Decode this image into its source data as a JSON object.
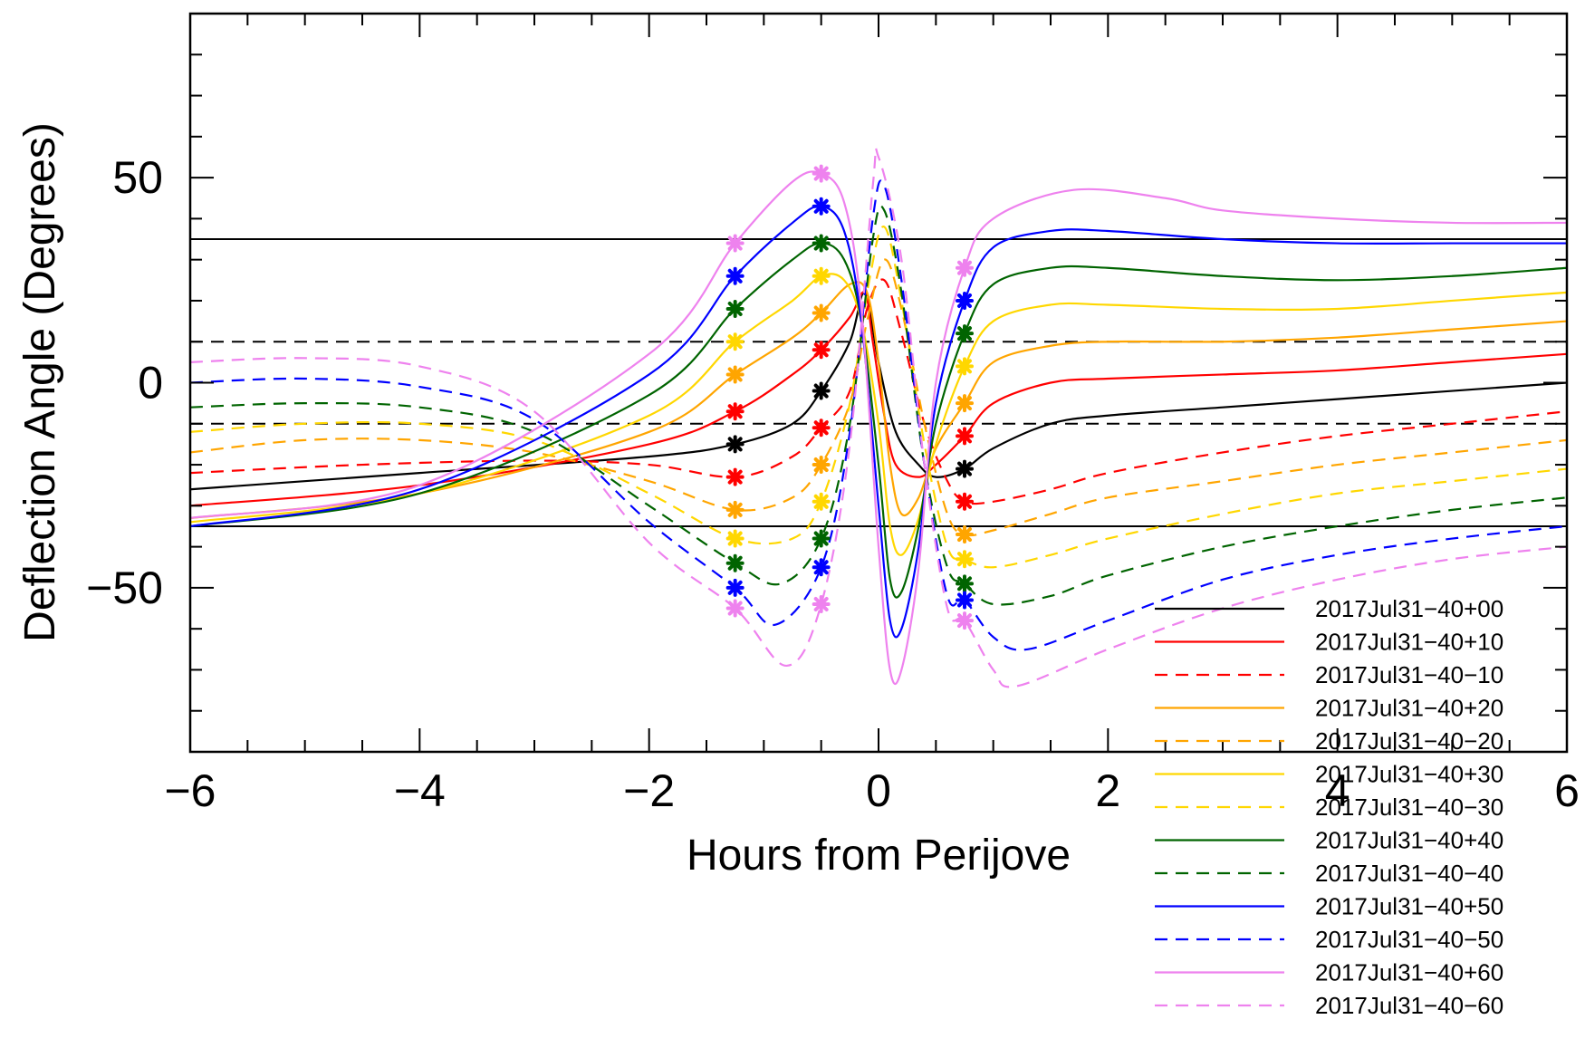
{
  "chart_data": {
    "type": "line",
    "title": "",
    "xlabel": "Hours from Perijove",
    "ylabel": "Deflection Angle (Degrees)",
    "xlim": [
      -6,
      6
    ],
    "ylim": [
      -90,
      90
    ],
    "xticks": [
      -6,
      -4,
      -2,
      0,
      2,
      4,
      6
    ],
    "xtick_labels": [
      "−6",
      "−4",
      "−2",
      "0",
      "2",
      "4",
      "6"
    ],
    "yticks": [
      -50,
      0,
      50
    ],
    "ytick_labels": [
      "−50",
      "0",
      "50"
    ],
    "grid": false,
    "legend_position": "bottom-right",
    "reference_lines": [
      {
        "y": 35,
        "style": "solid"
      },
      {
        "y": -35,
        "style": "solid"
      },
      {
        "y": 10,
        "style": "dashed"
      },
      {
        "y": -10,
        "style": "dashed"
      }
    ],
    "marker_times": [
      -1.25,
      -0.5,
      0.75
    ],
    "series": [
      {
        "name": "2017Jul31−40+00",
        "color": "#000000",
        "dash": false,
        "x": [
          -6,
          -4,
          -2,
          -1.25,
          -0.75,
          -0.5,
          -0.25,
          -0.12,
          0,
          0.15,
          0.35,
          0.5,
          0.75,
          1.0,
          1.5,
          2,
          3,
          4,
          5,
          6
        ],
        "y": [
          -26,
          -22,
          -18,
          -15,
          -10,
          -2,
          10,
          22,
          5,
          -12,
          -20,
          -23,
          -21,
          -16,
          -10,
          -8,
          -6,
          -4,
          -2,
          0
        ]
      },
      {
        "name": "2017Jul31−40+10",
        "color": "#ff0000",
        "dash": false,
        "x": [
          -6,
          -4,
          -2,
          -1.25,
          -0.75,
          -0.5,
          -0.25,
          -0.12,
          -0.05,
          0.05,
          0.15,
          0.35,
          0.5,
          0.75,
          1.0,
          1.5,
          2,
          3,
          4,
          5,
          6
        ],
        "y": [
          -30,
          -25,
          -15,
          -7,
          2,
          8,
          16,
          22,
          10,
          -8,
          -20,
          -23,
          -20,
          -13,
          -5,
          0,
          1,
          2,
          3,
          5,
          7
        ]
      },
      {
        "name": "2017Jul31−40−10",
        "color": "#ff0000",
        "dash": true,
        "x": [
          -6,
          -4.5,
          -3,
          -2,
          -1.25,
          -0.75,
          -0.5,
          -0.25,
          -0.1,
          0.05,
          0.2,
          0.4,
          0.6,
          0.75,
          1.0,
          1.5,
          2,
          3,
          4,
          5,
          6
        ],
        "y": [
          -22,
          -20,
          -19,
          -20,
          -23,
          -18,
          -11,
          -2,
          18,
          25,
          12,
          -10,
          -24,
          -29,
          -29,
          -26,
          -22,
          -17,
          -13,
          -10,
          -7
        ]
      },
      {
        "name": "2017Jul31−40+20",
        "color": "#ffa500",
        "dash": false,
        "x": [
          -6,
          -4,
          -2,
          -1.25,
          -0.75,
          -0.5,
          -0.25,
          -0.1,
          0,
          0.1,
          0.2,
          0.35,
          0.5,
          0.75,
          1.0,
          1.5,
          2,
          3,
          4,
          5,
          6
        ],
        "y": [
          -33,
          -27,
          -12,
          2,
          11,
          17,
          24,
          22,
          5,
          -20,
          -32,
          -28,
          -16,
          -5,
          5,
          9,
          10,
          10,
          11,
          13,
          15
        ]
      },
      {
        "name": "2017Jul31−40−20",
        "color": "#ffa500",
        "dash": true,
        "x": [
          -6,
          -5,
          -4,
          -3,
          -2,
          -1.25,
          -0.75,
          -0.5,
          -0.25,
          -0.1,
          0.05,
          0.2,
          0.4,
          0.6,
          0.75,
          1.0,
          1.5,
          2,
          3,
          4,
          5,
          6
        ],
        "y": [
          -17,
          -14,
          -14,
          -17,
          -24,
          -31,
          -28,
          -20,
          -5,
          15,
          30,
          18,
          -10,
          -32,
          -37,
          -36,
          -32,
          -28,
          -24,
          -20,
          -17,
          -14
        ]
      },
      {
        "name": "2017Jul31−40+30",
        "color": "#ffd700",
        "dash": false,
        "x": [
          -6,
          -4,
          -2,
          -1.25,
          -0.75,
          -0.5,
          -0.3,
          -0.15,
          0,
          0.1,
          0.2,
          0.35,
          0.5,
          0.75,
          1.0,
          1.5,
          2,
          3,
          4,
          5,
          6
        ],
        "y": [
          -34,
          -27,
          -8,
          10,
          20,
          26,
          25,
          15,
          -10,
          -35,
          -42,
          -33,
          -15,
          4,
          15,
          19,
          19,
          18,
          18,
          20,
          22
        ]
      },
      {
        "name": "2017Jul31−40−30",
        "color": "#ffd700",
        "dash": true,
        "x": [
          -6,
          -5,
          -4,
          -3,
          -2,
          -1.25,
          -0.75,
          -0.5,
          -0.25,
          -0.08,
          0.05,
          0.2,
          0.4,
          0.6,
          0.75,
          1.0,
          1.5,
          2,
          3,
          4,
          5,
          6
        ],
        "y": [
          -12,
          -10,
          -10,
          -14,
          -27,
          -38,
          -38,
          -29,
          -5,
          25,
          38,
          20,
          -15,
          -40,
          -43,
          -45,
          -42,
          -38,
          -32,
          -27,
          -24,
          -21
        ]
      },
      {
        "name": "2017Jul31−40+40",
        "color": "#006400",
        "dash": false,
        "x": [
          -6,
          -4,
          -2,
          -1.25,
          -0.75,
          -0.5,
          -0.3,
          -0.15,
          0,
          0.1,
          0.2,
          0.35,
          0.5,
          0.75,
          1.0,
          1.5,
          2,
          3,
          4,
          5,
          6
        ],
        "y": [
          -35,
          -27,
          -3,
          18,
          30,
          34,
          30,
          15,
          -20,
          -48,
          -51,
          -35,
          -10,
          12,
          24,
          28,
          28,
          26,
          25,
          26,
          28
        ]
      },
      {
        "name": "2017Jul31−40−40",
        "color": "#006400",
        "dash": true,
        "x": [
          -6,
          -5,
          -4,
          -3,
          -2,
          -1.25,
          -0.85,
          -0.5,
          -0.25,
          -0.05,
          0.05,
          0.2,
          0.4,
          0.6,
          0.75,
          1.0,
          1.5,
          2,
          3,
          4,
          5,
          6
        ],
        "y": [
          -6,
          -5,
          -6,
          -12,
          -30,
          -44,
          -49,
          -38,
          -10,
          35,
          42,
          22,
          -20,
          -45,
          -49,
          -54,
          -52,
          -47,
          -40,
          -35,
          -31,
          -28
        ]
      },
      {
        "name": "2017Jul31−40+50",
        "color": "#0000ff",
        "dash": false,
        "x": [
          -6,
          -4,
          -2,
          -1.25,
          -0.75,
          -0.5,
          -0.3,
          -0.15,
          0,
          0.1,
          0.2,
          0.35,
          0.5,
          0.75,
          1.0,
          1.5,
          2,
          3,
          4,
          5,
          6
        ],
        "y": [
          -35,
          -26,
          2,
          26,
          39,
          43,
          37,
          15,
          -30,
          -58,
          -60,
          -40,
          -5,
          20,
          33,
          37,
          37,
          35,
          34,
          34,
          34
        ]
      },
      {
        "name": "2017Jul31−40−50",
        "color": "#0000ff",
        "dash": true,
        "x": [
          -6,
          -5,
          -4,
          -3,
          -2,
          -1.25,
          -0.9,
          -0.5,
          -0.25,
          -0.05,
          0.05,
          0.2,
          0.4,
          0.6,
          0.75,
          1.0,
          1.3,
          2,
          3,
          4,
          5,
          6
        ],
        "y": [
          0,
          1,
          -1,
          -9,
          -34,
          -50,
          -59,
          -45,
          -12,
          40,
          48,
          25,
          -20,
          -52,
          -53,
          -62,
          -65,
          -58,
          -48,
          -42,
          -38,
          -35
        ]
      },
      {
        "name": "2017Jul31−40+60",
        "color": "#ee82ee",
        "dash": false,
        "x": [
          -6,
          -4,
          -2,
          -1.25,
          -0.75,
          -0.5,
          -0.3,
          -0.15,
          0,
          0.1,
          0.2,
          0.35,
          0.5,
          0.75,
          1.0,
          1.7,
          2.5,
          3,
          4,
          5,
          6
        ],
        "y": [
          -33,
          -25,
          7,
          34,
          49,
          51,
          44,
          18,
          -40,
          -70,
          -70,
          -45,
          0,
          28,
          40,
          47,
          45,
          42,
          40,
          39,
          39
        ]
      },
      {
        "name": "2017Jul31−40−60",
        "color": "#ee82ee",
        "dash": true,
        "x": [
          -6,
          -5,
          -4,
          -3,
          -2,
          -1.25,
          -0.8,
          -0.5,
          -0.25,
          -0.05,
          0,
          0.2,
          0.4,
          0.6,
          0.75,
          1.0,
          1.2,
          2,
          3,
          4,
          5,
          6
        ],
        "y": [
          5,
          6,
          4,
          -7,
          -39,
          -55,
          -69,
          -54,
          -15,
          48,
          55,
          30,
          -20,
          -55,
          -58,
          -70,
          -74,
          -65,
          -55,
          -48,
          -43,
          -40
        ]
      }
    ]
  }
}
